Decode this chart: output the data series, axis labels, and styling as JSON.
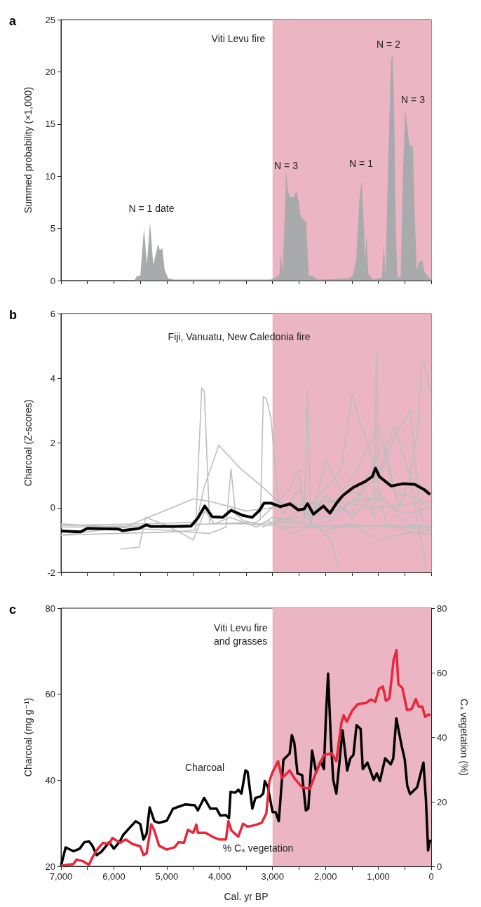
{
  "chart_data": [
    {
      "type": "area",
      "title": "a",
      "ylabel": "Summed probability (×1,000)",
      "xlim": [
        7000,
        0
      ],
      "xticks": [
        {
          "value": 7000,
          "label": null
        },
        {
          "value": 6500,
          "label": null
        },
        {
          "value": 6000,
          "label": null
        },
        {
          "value": 5500,
          "label": null
        },
        {
          "value": 5000,
          "label": null
        },
        {
          "value": 4500,
          "label": null
        },
        {
          "value": 4000,
          "label": null
        },
        {
          "value": 3500,
          "label": null
        },
        {
          "value": 3000,
          "label": null
        },
        {
          "value": 2500,
          "label": null
        },
        {
          "value": 2000,
          "label": null
        },
        {
          "value": 1500,
          "label": null
        },
        {
          "value": 1000,
          "label": null
        },
        {
          "value": 500,
          "label": null
        },
        {
          "value": 0,
          "label": null
        }
      ],
      "ylim": [
        0,
        25
      ],
      "yticks": [
        0,
        5,
        10,
        15,
        20,
        25
      ],
      "tick_labels": "y",
      "bands": [
        {
          "axis": "x",
          "from": 3000,
          "to": 0,
          "color": "#ecb5c3"
        }
      ],
      "annotations": [
        "Viti Levu fire",
        "N = 1 date",
        "N = 3",
        "N = 1",
        "N = 2",
        "N = 3"
      ],
      "color": "#a9aaac",
      "x": [
        7000,
        5616,
        5570,
        5500,
        5431,
        5376,
        5316,
        5256,
        5164,
        5131,
        5085,
        5039,
        4970,
        4878,
        3032,
        2940,
        2870,
        2847,
        2810,
        2764,
        2745,
        2708,
        2663,
        2594,
        2548,
        2502,
        2478,
        2409,
        2363,
        2317,
        2225,
        2155,
        1556,
        1486,
        1417,
        1362,
        1316,
        1270,
        1256,
        1223,
        1191,
        1094,
        933,
        896,
        862,
        816,
        793,
        760,
        733,
        702,
        669,
        642,
        577,
        540,
        494,
        448,
        411,
        347,
        310,
        273,
        227,
        171,
        125,
        10
      ],
      "values": [
        0,
        0,
        0.4,
        0.5,
        5.0,
        1.6,
        5.6,
        1.5,
        3.5,
        2.9,
        3.1,
        1.0,
        0.2,
        0.1,
        0.1,
        0.3,
        0.6,
        2.6,
        0.8,
        6.8,
        10.5,
        8.5,
        8.0,
        8.0,
        8.6,
        7.5,
        6.3,
        5.8,
        5.6,
        0.5,
        0.4,
        0.1,
        0.2,
        0.5,
        2.0,
        7.5,
        9.6,
        5.0,
        1.8,
        4.4,
        0.6,
        0.1,
        0.3,
        3.5,
        0.3,
        11.0,
        15.0,
        21.0,
        21.7,
        17.0,
        5.0,
        0.3,
        0.3,
        9.2,
        16.5,
        14.5,
        13.0,
        12.8,
        6.0,
        1.0,
        1.8,
        2.0,
        0.8,
        0.1
      ]
    },
    {
      "type": "line",
      "title": "b",
      "ylabel": "Charcoal (Z-scores)",
      "xlim": [
        7000,
        0
      ],
      "xticks": [
        {
          "value": 7000,
          "label": null
        },
        {
          "value": 6500,
          "label": null
        },
        {
          "value": 6000,
          "label": null
        },
        {
          "value": 5500,
          "label": null
        },
        {
          "value": 5000,
          "label": null
        },
        {
          "value": 4500,
          "label": null
        },
        {
          "value": 4000,
          "label": null
        },
        {
          "value": 3500,
          "label": null
        },
        {
          "value": 3000,
          "label": null
        },
        {
          "value": 2500,
          "label": null
        },
        {
          "value": 2000,
          "label": null
        },
        {
          "value": 1500,
          "label": null
        },
        {
          "value": 1000,
          "label": null
        },
        {
          "value": 500,
          "label": null
        },
        {
          "value": 0,
          "label": null
        }
      ],
      "ylim": [
        -2,
        6
      ],
      "yticks": [
        -2,
        0,
        2,
        4,
        6
      ],
      "tick_labels": "y",
      "bands": [
        {
          "axis": "x",
          "from": 3000,
          "to": 0,
          "color": "#ecb5c3"
        }
      ],
      "annotations": [
        "Fiji, Vanuatu, New Caledonia fire"
      ],
      "series": [
        {
          "color": "#bdbec0",
          "x": [
            7000,
            5500,
            4450,
            4340,
            4290,
            4190,
            3500,
            2500,
            1500,
            500,
            0
          ],
          "values": [
            -0.55,
            -0.5,
            -0.45,
            3.7,
            3.6,
            -0.5,
            -0.5,
            -0.6,
            -0.55,
            -0.6,
            -0.7
          ]
        },
        {
          "color": "#bdbec0",
          "x": [
            7000,
            5000,
            3300,
            3230,
            3175,
            3120,
            3030,
            2900,
            2800,
            2500,
            2300,
            2000,
            1500,
            1000,
            500,
            0
          ],
          "values": [
            -0.6,
            -0.55,
            -0.45,
            -0.35,
            3.43,
            3.38,
            2.77,
            0.3,
            -0.2,
            0.6,
            -0.4,
            0.4,
            -0.3,
            0.5,
            -0.5,
            -0.6
          ]
        },
        {
          "color": "#bdbec0",
          "x": [
            7000,
            6000,
            4900,
            4470,
            4300,
            4016,
            3600,
            3160,
            2900,
            2500,
            2000,
            1500,
            1000,
            500,
            0
          ],
          "values": [
            -0.85,
            -0.8,
            -0.75,
            -0.7,
            0.6,
            1.93,
            1.2,
            0.6,
            0.2,
            0.0,
            -0.3,
            0.2,
            0.3,
            -0.2,
            0.0
          ]
        },
        {
          "color": "#bdbec0",
          "x": [
            7000,
            6000,
            5000,
            4200,
            3880,
            3785,
            3700,
            3550,
            3300,
            2800,
            2300,
            1800,
            1000,
            0
          ],
          "values": [
            -0.5,
            -0.6,
            -0.7,
            -0.8,
            -0.6,
            1.19,
            -0.2,
            -0.4,
            -0.5,
            -0.45,
            -0.5,
            -0.6,
            -0.55,
            -0.6
          ]
        },
        {
          "color": "#bdbec0",
          "x": [
            3000,
            2500,
            2000,
            1500,
            1200,
            1080,
            1037,
            1000,
            850,
            500,
            200,
            0
          ],
          "values": [
            -0.4,
            -0.3,
            0.1,
            0.5,
            0.3,
            -0.3,
            4.76,
            0.5,
            -0.5,
            -0.7,
            -0.8,
            -0.8
          ]
        },
        {
          "color": "#bdbec0",
          "x": [
            2500,
            2000,
            1500,
            1200,
            900,
            600,
            400,
            250,
            178,
            134,
            22
          ],
          "values": [
            -0.5,
            0.3,
            -0.2,
            1.0,
            2.0,
            0.0,
            1.0,
            2.5,
            4.54,
            4.47,
            3.56
          ]
        },
        {
          "color": "#bdbec0",
          "x": [
            3200,
            2700,
            2200,
            1700,
            1492,
            1380,
            1200,
            1000,
            700,
            400,
            200,
            22
          ],
          "values": [
            -0.6,
            -0.3,
            0.2,
            1.2,
            3.53,
            2.8,
            2.0,
            0.8,
            2.2,
            3.0,
            -0.3,
            -0.7
          ]
        },
        {
          "color": "#bdbec0",
          "x": [
            3100,
            2600,
            2200,
            1900,
            1737
          ],
          "values": [
            -0.4,
            -0.8,
            -0.5,
            -1.0,
            -1.87
          ]
        },
        {
          "color": "#bdbec0",
          "x": [
            2000,
            1500,
            1000,
            700,
            400,
            200,
            89
          ],
          "values": [
            -0.5,
            0.2,
            1.0,
            2.5,
            1.0,
            -1.0,
            -1.87
          ]
        },
        {
          "color": "#bdbec0",
          "x": [
            3200,
            2700,
            2500,
            2400,
            2338,
            2280,
            2000,
            1700,
            1400,
            1000,
            700,
            300,
            22
          ],
          "values": [
            -0.3,
            0.5,
            1.2,
            -0.3,
            3.64,
            -0.5,
            1.5,
            0.5,
            1.2,
            2.5,
            0.5,
            0.3,
            0.0
          ]
        },
        {
          "color": "#bdbec0",
          "x": [
            5878,
            5520,
            5400,
            5000,
            4600,
            4500,
            4280,
            4100,
            3800,
            3300,
            3000,
            2600,
            2000,
            1500,
            1000,
            500,
            0
          ],
          "values": [
            -1.28,
            -1.22,
            -0.3,
            -0.55,
            -0.9,
            -1.0,
            -0.1,
            -0.5,
            -0.3,
            -0.6,
            -0.3,
            -0.4,
            -0.7,
            -0.5,
            -1.0,
            -0.8,
            -0.7
          ]
        },
        {
          "color": "#bdbec0",
          "x": [
            7000,
            5800,
            4497,
            4200,
            3500,
            3000,
            2000,
            1000,
            0
          ],
          "values": [
            -0.85,
            -0.6,
            0.27,
            0.2,
            -0.1,
            0.0,
            0.2,
            0.0,
            0.2
          ]
        },
        {
          "color": "#000000",
          "x": [
            7000,
            6635,
            6501,
            5922,
            5833,
            5522,
            5388,
            5299,
            4854,
            4542,
            4408,
            4283,
            4141,
            3941,
            3785,
            3562,
            3384,
            3250,
            3161,
            3028,
            2850,
            2672,
            2516,
            2404,
            2338,
            2226,
            2039,
            1915,
            1781,
            1670,
            1469,
            1247,
            1113,
            1055,
            980,
            757,
            534,
            312,
            134,
            22
          ],
          "values": [
            -0.72,
            -0.75,
            -0.64,
            -0.66,
            -0.71,
            -0.64,
            -0.53,
            -0.58,
            -0.58,
            -0.57,
            -0.31,
            0.05,
            -0.28,
            -0.3,
            -0.08,
            -0.24,
            -0.3,
            -0.09,
            0.14,
            0.14,
            0.03,
            0.12,
            -0.07,
            -0.04,
            0.12,
            -0.2,
            0.05,
            -0.17,
            0.16,
            0.38,
            0.63,
            0.81,
            0.96,
            1.22,
            0.96,
            0.67,
            0.74,
            0.72,
            0.56,
            0.41
          ]
        }
      ]
    },
    {
      "type": "line",
      "title": "c",
      "xlabel": "Cal. yr BP",
      "ylabel": "Charcoal (mg g⁻¹)",
      "y2label": "C₄ vegetation (%)",
      "xlim": [
        7000,
        0
      ],
      "xticks": [
        {
          "value": 7000,
          "label": "7,000"
        },
        {
          "value": 6500,
          "label": null
        },
        {
          "value": 6000,
          "label": "6,000"
        },
        {
          "value": 5500,
          "label": null
        },
        {
          "value": 5000,
          "label": "5,000"
        },
        {
          "value": 4500,
          "label": null
        },
        {
          "value": 4000,
          "label": "4,000"
        },
        {
          "value": 3500,
          "label": null
        },
        {
          "value": 3000,
          "label": "3,000"
        },
        {
          "value": 2500,
          "label": null
        },
        {
          "value": 2000,
          "label": "2,000"
        },
        {
          "value": 1500,
          "label": null
        },
        {
          "value": 1000,
          "label": "1,000"
        },
        {
          "value": 500,
          "label": null
        },
        0
      ],
      "ylim": [
        20,
        80
      ],
      "yticks": [
        20,
        40,
        60,
        80
      ],
      "y2lim": [
        0,
        80
      ],
      "y2ticks": [
        0,
        20,
        40,
        60,
        80
      ],
      "bands": [
        {
          "axis": "x",
          "from": 3000,
          "to": 0,
          "color": "#ecb5c3"
        }
      ],
      "annotations": [
        "Viti Levu fire\nand grasses"
      ],
      "series": [
        {
          "name": "Charcoal",
          "color": "#000000",
          "x": [
            7000,
            6912,
            6765,
            6647,
            6559,
            6471,
            6412,
            6324,
            6235,
            6088,
            6000,
            5882,
            5824,
            5706,
            5588,
            5500,
            5441,
            5382,
            5324,
            5235,
            5147,
            5000,
            4882,
            4765,
            4647,
            4471,
            4412,
            4294,
            4176,
            4059,
            3988,
            3882,
            3824,
            3794,
            3706,
            3647,
            3588,
            3512,
            3471,
            3382,
            3324,
            3235,
            3176,
            3147,
            3088,
            3000,
            2941,
            2882,
            2794,
            2677,
            2635,
            2588,
            2529,
            2441,
            2370,
            2324,
            2253,
            2176,
            2088,
            2029,
            1990,
            1950,
            1900,
            1853,
            1794,
            1676,
            1588,
            1529,
            1471,
            1412,
            1335,
            1294,
            1206,
            1088,
            1029,
            971,
            871,
            765,
            718,
            660,
            559,
            500,
            453,
            400,
            265,
            147,
            100,
            59,
            29,
            0
          ],
          "values": [
            20.1,
            24.4,
            23.5,
            24.1,
            25.6,
            25.8,
            24.9,
            22.6,
            23.4,
            25.6,
            24.1,
            25.9,
            27.3,
            28.9,
            30.5,
            29.8,
            26.2,
            27.6,
            33.7,
            30.5,
            30.1,
            30.6,
            33.4,
            33.9,
            34.4,
            34.2,
            33.0,
            35.9,
            33.4,
            33.4,
            31.8,
            31.9,
            31.2,
            37.3,
            37.1,
            37.8,
            36.9,
            42.3,
            41.9,
            33.4,
            35.9,
            36.2,
            36.9,
            39.8,
            38.4,
            32.6,
            32.6,
            30.5,
            44.8,
            46.2,
            50.5,
            48.7,
            41.6,
            41.2,
            33.0,
            33.4,
            46.9,
            41.9,
            44.4,
            42.6,
            55,
            64.8,
            50,
            40.1,
            36.9,
            51.6,
            42.3,
            45.1,
            45.9,
            52.8,
            51.9,
            42.6,
            44.1,
            40.1,
            41.6,
            39.8,
            45.1,
            43.7,
            45.1,
            54.4,
            48.0,
            44.8,
            38.7,
            36.8,
            38.4,
            44.1,
            35.5,
            23.7,
            25.9,
            25.9
          ]
        },
        {
          "name": "% C₄ vegetation",
          "color": "#e8273a",
          "axis": "y2",
          "x": [
            7000,
            6765,
            6706,
            6588,
            6471,
            6412,
            6324,
            6206,
            6088,
            6029,
            5882,
            5776,
            5647,
            5500,
            5441,
            5382,
            5294,
            5235,
            5147,
            5000,
            4853,
            4776,
            4676,
            4600,
            4500,
            4441,
            4412,
            4265,
            4118,
            4000,
            3882,
            3835,
            3776,
            3647,
            3559,
            3471,
            3324,
            3206,
            3118,
            3059,
            3000,
            2894,
            2824,
            2676,
            2588,
            2441,
            2294,
            2176,
            2029,
            1882,
            1794,
            1699,
            1655,
            1597,
            1499,
            1388,
            1233,
            1144,
            1056,
            989,
            914,
            856,
            790,
            710,
            657,
            621,
            546,
            457,
            368,
            293,
            235,
            169,
            115,
            58,
            13
          ],
          "values": [
            0.2,
            0.7,
            2.1,
            1.6,
            0.5,
            2.6,
            5.0,
            7.3,
            6.9,
            8.8,
            7.3,
            8.3,
            6.9,
            6.2,
            3.5,
            4.0,
            13.0,
            11.1,
            6.4,
            5.2,
            5.9,
            7.5,
            7.3,
            11.3,
            10.4,
            12.9,
            10.4,
            10.4,
            9.0,
            8.3,
            8.3,
            14.0,
            11.1,
            9.2,
            13.2,
            12.3,
            12.8,
            13.5,
            16.4,
            26.4,
            29.2,
            32.6,
            27.3,
            29.7,
            27.3,
            24.5,
            24.0,
            29.2,
            34.5,
            35.0,
            32.6,
            44.4,
            46.8,
            44.8,
            48.1,
            50.3,
            50.6,
            51.7,
            51.0,
            55.0,
            55.7,
            51.3,
            52.1,
            64.1,
            67.0,
            56.4,
            55.3,
            48.4,
            48.8,
            51.8,
            49.5,
            49.5,
            46.3,
            47.0,
            46.8
          ]
        }
      ]
    }
  ]
}
